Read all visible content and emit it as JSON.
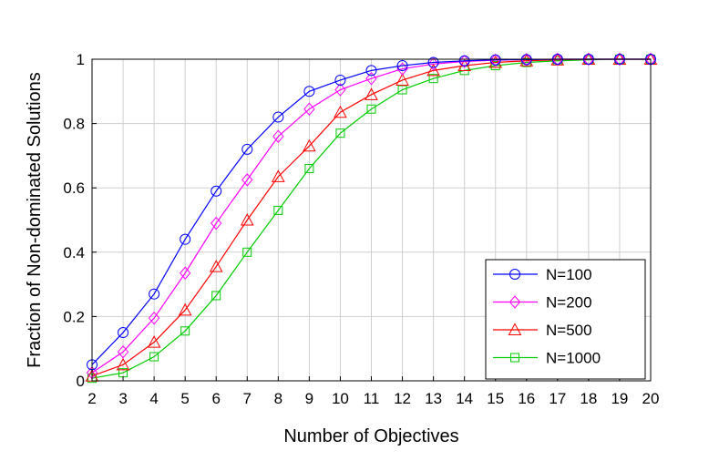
{
  "chart_data": {
    "type": "line",
    "title": "",
    "xlabel": "Number of Objectives",
    "ylabel": "Fraction of Non-dominated Solutions",
    "xlim": [
      2,
      20
    ],
    "ylim": [
      0,
      1
    ],
    "x": [
      2,
      3,
      4,
      5,
      6,
      7,
      8,
      9,
      10,
      11,
      12,
      13,
      14,
      15,
      16,
      17,
      18,
      19,
      20
    ],
    "xticks": [
      "2",
      "3",
      "4",
      "5",
      "6",
      "7",
      "8",
      "9",
      "10",
      "11",
      "12",
      "13",
      "14",
      "15",
      "16",
      "17",
      "18",
      "19",
      "20"
    ],
    "yticks": [
      {
        "value": 0,
        "label": "0"
      },
      {
        "value": 0.2,
        "label": "0.2"
      },
      {
        "value": 0.4,
        "label": "0.4"
      },
      {
        "value": 0.6,
        "label": "0.6"
      },
      {
        "value": 0.8,
        "label": "0.8"
      },
      {
        "value": 1,
        "label": "1"
      }
    ],
    "grid": true,
    "legend_position": "bottom-right",
    "series": [
      {
        "name": "N=100",
        "color": "#0000ff",
        "marker": "circle",
        "values": [
          0.05,
          0.15,
          0.27,
          0.44,
          0.59,
          0.72,
          0.82,
          0.9,
          0.935,
          0.965,
          0.98,
          0.99,
          0.995,
          0.998,
          0.999,
          1.0,
          1.0,
          1.0,
          1.0
        ]
      },
      {
        "name": "N=200",
        "color": "#ff00ff",
        "marker": "diamond",
        "values": [
          0.025,
          0.09,
          0.195,
          0.335,
          0.49,
          0.625,
          0.76,
          0.845,
          0.905,
          0.94,
          0.97,
          0.985,
          0.993,
          0.997,
          0.999,
          1.0,
          1.0,
          1.0,
          1.0
        ]
      },
      {
        "name": "N=500",
        "color": "#ff0000",
        "marker": "triangle",
        "values": [
          0.015,
          0.05,
          0.12,
          0.22,
          0.355,
          0.5,
          0.635,
          0.73,
          0.835,
          0.89,
          0.935,
          0.965,
          0.98,
          0.99,
          0.995,
          0.998,
          1.0,
          1.0,
          1.0
        ]
      },
      {
        "name": "N=1000",
        "color": "#00cc00",
        "marker": "square",
        "values": [
          0.008,
          0.025,
          0.075,
          0.155,
          0.265,
          0.4,
          0.53,
          0.66,
          0.77,
          0.845,
          0.905,
          0.94,
          0.965,
          0.98,
          0.99,
          0.995,
          0.998,
          1.0,
          1.0
        ]
      }
    ]
  }
}
